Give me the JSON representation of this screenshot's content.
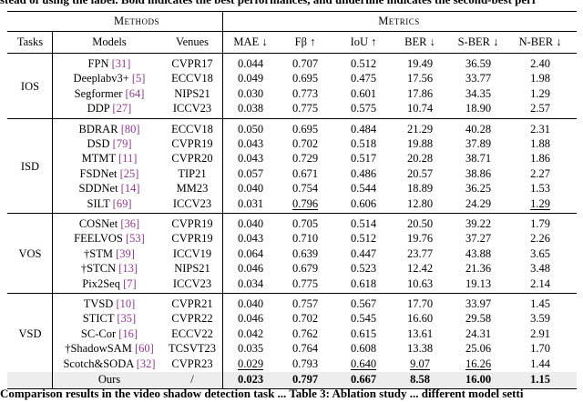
{
  "caption_top": "stead of using the label. Bold indicates the best performances, and underline indicates the second-best perf",
  "caption_bottom": "Comparison results in the video shadow detection task ... Table 3: Ablation study ... different model setti",
  "header": {
    "group_methods": "Methods",
    "group_metrics": "Metrics",
    "col_tasks": "Tasks",
    "col_models": "Models",
    "col_venues": "Venues",
    "col_mae": "MAE ↓",
    "col_fbeta": "Fβ ↑",
    "col_iou": "IoU ↑",
    "col_ber": "BER ↓",
    "col_sber": "S-BER ↓",
    "col_nber": "N-BER ↓"
  },
  "groups": [
    {
      "task": "IOS",
      "rows": [
        {
          "model": "FPN",
          "ref": "[31]",
          "venue": "CVPR17",
          "mae": "0.044",
          "fbeta": "0.707",
          "iou": "0.512",
          "ber": "19.49",
          "sber": "36.59",
          "nber": "2.40"
        },
        {
          "model": "Deeplabv3+",
          "ref": "[5]",
          "venue": "ECCV18",
          "mae": "0.049",
          "fbeta": "0.695",
          "iou": "0.475",
          "ber": "17.56",
          "sber": "33.77",
          "nber": "1.98"
        },
        {
          "model": "Segformer",
          "ref": "[64]",
          "venue": "NIPS21",
          "mae": "0.030",
          "fbeta": "0.773",
          "iou": "0.601",
          "ber": "17.86",
          "sber": "34.35",
          "nber": "1.29"
        },
        {
          "model": "DDP",
          "ref": "[27]",
          "venue": "ICCV23",
          "mae": "0.038",
          "fbeta": "0.775",
          "iou": "0.575",
          "ber": "10.74",
          "sber": "18.90",
          "nber": "2.57"
        }
      ]
    },
    {
      "task": "ISD",
      "rows": [
        {
          "model": "BDRAR",
          "ref": "[80]",
          "venue": "ECCV18",
          "mae": "0.050",
          "fbeta": "0.695",
          "iou": "0.484",
          "ber": "21.29",
          "sber": "40.28",
          "nber": "2.31"
        },
        {
          "model": "DSD",
          "ref": "[79]",
          "venue": "CVPR19",
          "mae": "0.043",
          "fbeta": "0.702",
          "iou": "0.518",
          "ber": "19.88",
          "sber": "37.89",
          "nber": "1.88"
        },
        {
          "model": "MTMT",
          "ref": "[11]",
          "venue": "CVPR20",
          "mae": "0.043",
          "fbeta": "0.729",
          "iou": "0.517",
          "ber": "20.28",
          "sber": "38.71",
          "nber": "1.86"
        },
        {
          "model": "FSDNet",
          "ref": "[25]",
          "venue": "TIP21",
          "mae": "0.057",
          "fbeta": "0.671",
          "iou": "0.486",
          "ber": "20.57",
          "sber": "38.86",
          "nber": "2.27"
        },
        {
          "model": "SDDNet",
          "ref": "[14]",
          "venue": "MM23",
          "mae": "0.040",
          "fbeta": "0.754",
          "iou": "0.544",
          "ber": "18.89",
          "sber": "36.25",
          "nber": "1.53"
        },
        {
          "model": "SILT",
          "ref": "[69]",
          "venue": "ICCV23",
          "mae": "0.031",
          "fbeta": "0.796",
          "iou": "0.606",
          "ber": "12.80",
          "sber": "24.29",
          "nber": "1.29",
          "u_fbeta": true,
          "u_nber": true
        }
      ]
    },
    {
      "task": "VOS",
      "rows": [
        {
          "model": "COSNet",
          "ref": "[36]",
          "venue": "CVPR19",
          "mae": "0.040",
          "fbeta": "0.705",
          "iou": "0.514",
          "ber": "20.50",
          "sber": "39.22",
          "nber": "1.79"
        },
        {
          "model": "FEELVOS",
          "ref": "[53]",
          "venue": "CVPR19",
          "mae": "0.043",
          "fbeta": "0.710",
          "iou": "0.512",
          "ber": "19.76",
          "sber": "37.27",
          "nber": "2.26"
        },
        {
          "model": "†STM",
          "ref": "[39]",
          "venue": "ICCV19",
          "mae": "0.064",
          "fbeta": "0.639",
          "iou": "0.447",
          "ber": "23.77",
          "sber": "43.88",
          "nber": "3.65"
        },
        {
          "model": "†STCN",
          "ref": "[13]",
          "venue": "NIPS21",
          "mae": "0.046",
          "fbeta": "0.679",
          "iou": "0.523",
          "ber": "12.42",
          "sber": "21.36",
          "nber": "3.48"
        },
        {
          "model": "Pix2Seq",
          "ref": "[7]",
          "venue": "ICCV23",
          "mae": "0.034",
          "fbeta": "0.775",
          "iou": "0.618",
          "ber": "10.63",
          "sber": "19.13",
          "nber": "2.14"
        }
      ]
    },
    {
      "task": "VSD",
      "rows": [
        {
          "model": "TVSD",
          "ref": "[10]",
          "venue": "CVPR21",
          "mae": "0.040",
          "fbeta": "0.757",
          "iou": "0.567",
          "ber": "17.70",
          "sber": "33.97",
          "nber": "1.45"
        },
        {
          "model": "STICT",
          "ref": "[35]",
          "venue": "CVPR22",
          "mae": "0.046",
          "fbeta": "0.702",
          "iou": "0.545",
          "ber": "16.60",
          "sber": "29.58",
          "nber": "3.59"
        },
        {
          "model": "SC-Cor",
          "ref": "[16]",
          "venue": "ECCV22",
          "mae": "0.042",
          "fbeta": "0.762",
          "iou": "0.615",
          "ber": "13.61",
          "sber": "24.31",
          "nber": "2.91"
        },
        {
          "model": "†ShadowSAM",
          "ref": "[60]",
          "venue": "TCSVT23",
          "mae": "0.035",
          "fbeta": "0.764",
          "iou": "0.608",
          "ber": "13.38",
          "sber": "25.06",
          "nber": "1.70"
        },
        {
          "model": "Scotch&SODA",
          "ref": "[32]",
          "venue": "CVPR23",
          "mae": "0.029",
          "fbeta": "0.793",
          "iou": "0.640",
          "ber": "9.07",
          "sber": "16.26",
          "nber": "1.44",
          "u_mae": true,
          "u_iou": true,
          "u_ber": true,
          "u_sber": true
        }
      ]
    }
  ],
  "ours": {
    "model": "Ours",
    "venue": "/",
    "mae": "0.023",
    "fbeta": "0.797",
    "iou": "0.667",
    "ber": "8.58",
    "sber": "16.00",
    "nber": "1.15"
  }
}
